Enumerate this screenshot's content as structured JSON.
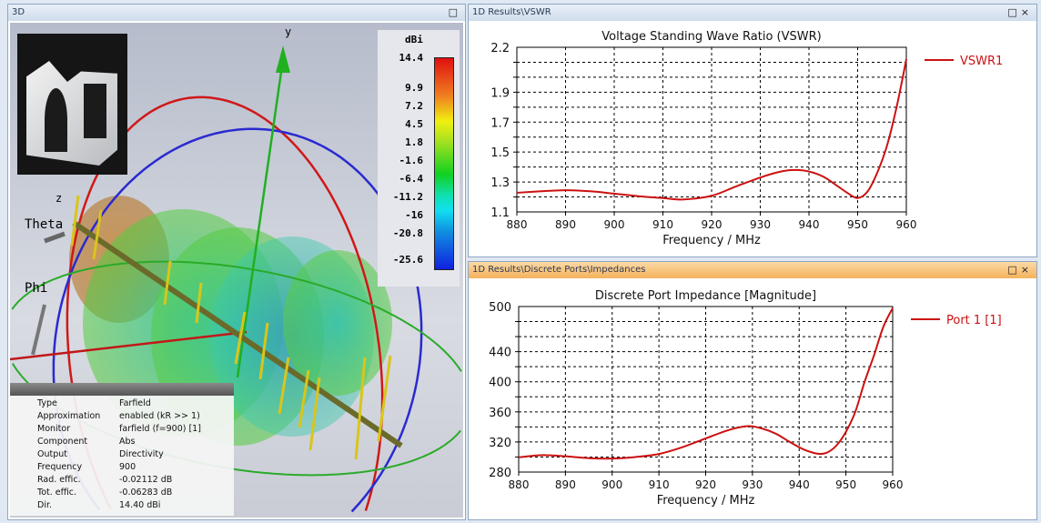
{
  "left_panel": {
    "title": "3D",
    "axis_labels": {
      "y": "y",
      "z": "z",
      "theta": "Theta",
      "phi": "Phi"
    },
    "colorbar": {
      "unit": "dBi",
      "ticks": [
        "14.4",
        "9.9",
        "7.2",
        "4.5",
        "1.8",
        "-1.6",
        "-6.4",
        "-11.2",
        "-16",
        "-20.8",
        "-25.6"
      ]
    },
    "info": [
      {
        "label": "Type",
        "value": "Farfield"
      },
      {
        "label": "Approximation",
        "value": "enabled (kR >> 1)"
      },
      {
        "label": "Monitor",
        "value": "farfield (f=900) [1]"
      },
      {
        "label": "Component",
        "value": "Abs"
      },
      {
        "label": "Output",
        "value": "Directivity"
      },
      {
        "label": "Frequency",
        "value": "900"
      },
      {
        "label": "Rad. effic.",
        "value": "-0.02112 dB"
      },
      {
        "label": "Tot. effic.",
        "value": "-0.06283 dB"
      },
      {
        "label": "Dir.",
        "value": "14.40 dBi"
      }
    ]
  },
  "top_right_panel": {
    "title": "1D Results\\VSWR"
  },
  "bottom_right_panel": {
    "title": "1D Results\\Discrete Ports\\Impedances"
  },
  "window_buttons": {
    "maximize": "□",
    "close": "×"
  },
  "chart_data": [
    {
      "type": "line",
      "title": "Voltage Standing Wave Ratio (VSWR)",
      "xlabel": "Frequency / MHz",
      "ylabel": "",
      "xlim": [
        880,
        960
      ],
      "ylim": [
        1.1,
        2.2
      ],
      "xticks": [
        880,
        890,
        900,
        910,
        920,
        930,
        940,
        950,
        960
      ],
      "yticks": [
        1.1,
        1.3,
        1.5,
        1.7,
        1.9,
        2.2
      ],
      "ygrid_step": 0.1,
      "grid": true,
      "legend": "right",
      "color": "#cc1111",
      "series": [
        {
          "name": "VSWR1",
          "x": [
            880,
            885,
            890,
            895,
            900,
            905,
            910,
            914,
            920,
            925,
            930,
            934,
            937,
            940,
            943,
            946,
            948,
            950,
            952,
            954,
            956,
            958,
            960
          ],
          "y": [
            1.228,
            1.238,
            1.245,
            1.238,
            1.222,
            1.205,
            1.193,
            1.183,
            1.208,
            1.27,
            1.33,
            1.368,
            1.38,
            1.37,
            1.335,
            1.27,
            1.225,
            1.193,
            1.235,
            1.36,
            1.54,
            1.8,
            2.12
          ]
        }
      ]
    },
    {
      "type": "line",
      "title": "Discrete Port Impedance [Magnitude]",
      "xlabel": "Frequency / MHz",
      "ylabel": "",
      "xlim": [
        880,
        960
      ],
      "ylim": [
        280,
        500
      ],
      "xticks": [
        880,
        890,
        900,
        910,
        920,
        930,
        940,
        950,
        960
      ],
      "yticks": [
        280,
        320,
        360,
        400,
        440,
        500
      ],
      "ygrid_step": 20,
      "grid": true,
      "legend": "right",
      "color": "#cc1111",
      "series": [
        {
          "name": "Port 1 [1]",
          "x": [
            880,
            885,
            890,
            895,
            900,
            905,
            910,
            915,
            920,
            925,
            929,
            932,
            935,
            938,
            941,
            944,
            946,
            948,
            950,
            952,
            954,
            956,
            958,
            960
          ],
          "y": [
            299.5,
            302.5,
            301,
            298.5,
            298,
            300,
            304,
            313,
            324.7,
            336,
            341,
            338,
            331,
            320,
            310,
            304.3,
            306,
            315.5,
            333.5,
            360,
            400,
            435,
            473,
            498
          ]
        }
      ]
    }
  ]
}
